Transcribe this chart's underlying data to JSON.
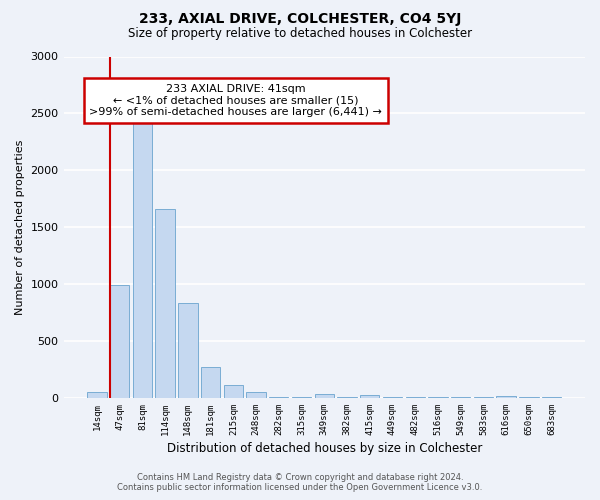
{
  "title": "233, AXIAL DRIVE, COLCHESTER, CO4 5YJ",
  "subtitle": "Size of property relative to detached houses in Colchester",
  "xlabel": "Distribution of detached houses by size in Colchester",
  "ylabel": "Number of detached properties",
  "bar_color": "#c5d8f0",
  "bar_edge_color": "#7aadd4",
  "background_color": "#eef2f9",
  "grid_color": "#ffffff",
  "categories": [
    "14sqm",
    "47sqm",
    "81sqm",
    "114sqm",
    "148sqm",
    "181sqm",
    "215sqm",
    "248sqm",
    "282sqm",
    "315sqm",
    "349sqm",
    "382sqm",
    "415sqm",
    "449sqm",
    "482sqm",
    "516sqm",
    "549sqm",
    "583sqm",
    "616sqm",
    "650sqm",
    "683sqm"
  ],
  "values": [
    50,
    990,
    2460,
    1660,
    830,
    270,
    115,
    50,
    5,
    5,
    35,
    5,
    30,
    5,
    5,
    5,
    5,
    5,
    18,
    5,
    5
  ],
  "ylim": [
    0,
    3000
  ],
  "yticks": [
    0,
    500,
    1000,
    1500,
    2000,
    2500,
    3000
  ],
  "property_line_color": "#cc0000",
  "annotation_box_text": "233 AXIAL DRIVE: 41sqm\n← <1% of detached houses are smaller (15)\n>99% of semi-detached houses are larger (6,441) →",
  "annotation_box_color": "#cc0000",
  "footer_line1": "Contains HM Land Registry data © Crown copyright and database right 2024.",
  "footer_line2": "Contains public sector information licensed under the Open Government Licence v3.0."
}
